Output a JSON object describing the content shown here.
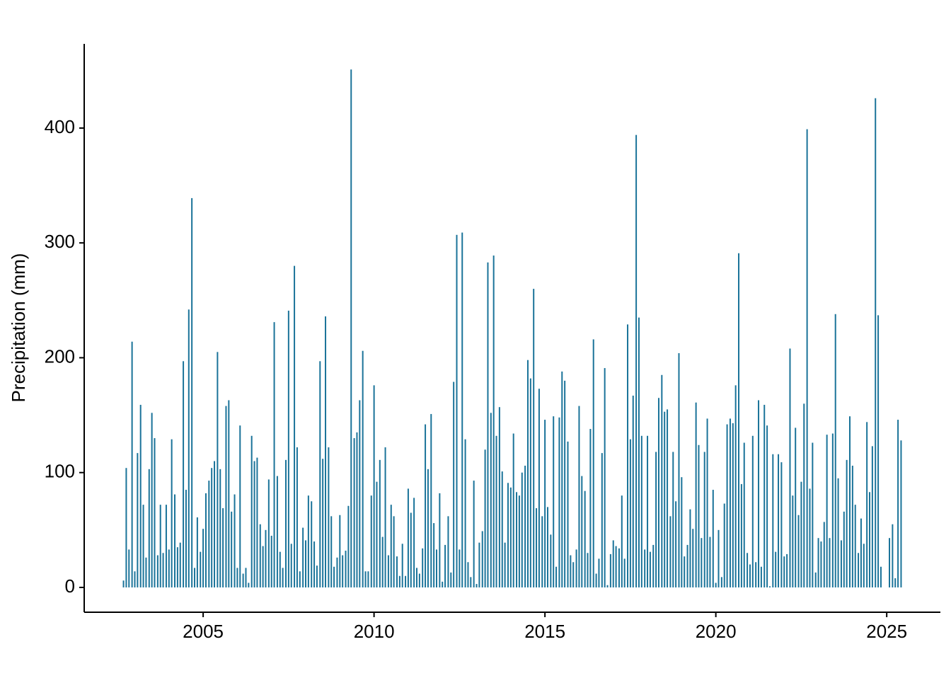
{
  "chart_data": {
    "type": "bar",
    "y_label": "Precipitation (mm)",
    "color": "#1a7399",
    "x": [
      2002.67,
      2002.75,
      2002.83,
      2002.92,
      2003,
      2003.08,
      2003.17,
      2003.25,
      2003.33,
      2003.42,
      2003.5,
      2003.58,
      2003.67,
      2003.75,
      2003.83,
      2003.92,
      2004,
      2004.08,
      2004.17,
      2004.25,
      2004.33,
      2004.42,
      2004.5,
      2004.58,
      2004.67,
      2004.75,
      2004.83,
      2004.92,
      2005,
      2005.08,
      2005.17,
      2005.25,
      2005.33,
      2005.42,
      2005.5,
      2005.58,
      2005.67,
      2005.75,
      2005.83,
      2005.92,
      2006,
      2006.08,
      2006.17,
      2006.25,
      2006.33,
      2006.42,
      2006.5,
      2006.58,
      2006.67,
      2006.75,
      2006.83,
      2006.92,
      2007,
      2007.08,
      2007.17,
      2007.25,
      2007.33,
      2007.42,
      2007.5,
      2007.58,
      2007.67,
      2007.75,
      2007.83,
      2007.92,
      2008,
      2008.08,
      2008.17,
      2008.25,
      2008.33,
      2008.42,
      2008.5,
      2008.58,
      2008.67,
      2008.75,
      2008.83,
      2008.92,
      2009,
      2009.08,
      2009.17,
      2009.25,
      2009.33,
      2009.42,
      2009.5,
      2009.58,
      2009.67,
      2009.75,
      2009.83,
      2009.92,
      2010,
      2010.08,
      2010.17,
      2010.25,
      2010.33,
      2010.42,
      2010.5,
      2010.58,
      2010.67,
      2010.75,
      2010.83,
      2010.92,
      2011,
      2011.08,
      2011.17,
      2011.25,
      2011.33,
      2011.42,
      2011.5,
      2011.58,
      2011.67,
      2011.75,
      2011.83,
      2011.92,
      2012,
      2012.08,
      2012.17,
      2012.25,
      2012.33,
      2012.42,
      2012.5,
      2012.58,
      2012.67,
      2012.75,
      2012.83,
      2012.92,
      2013,
      2013.08,
      2013.17,
      2013.25,
      2013.33,
      2013.42,
      2013.5,
      2013.58,
      2013.67,
      2013.75,
      2013.83,
      2013.92,
      2014,
      2014.08,
      2014.17,
      2014.25,
      2014.33,
      2014.42,
      2014.5,
      2014.58,
      2014.67,
      2014.75,
      2014.83,
      2014.92,
      2015,
      2015.08,
      2015.17,
      2015.25,
      2015.33,
      2015.42,
      2015.5,
      2015.58,
      2015.67,
      2015.75,
      2015.83,
      2015.92,
      2016,
      2016.08,
      2016.17,
      2016.25,
      2016.33,
      2016.42,
      2016.5,
      2016.58,
      2016.67,
      2016.75,
      2016.83,
      2016.92,
      2017,
      2017.08,
      2017.17,
      2017.25,
      2017.33,
      2017.42,
      2017.5,
      2017.58,
      2017.67,
      2017.75,
      2017.83,
      2017.92,
      2018,
      2018.08,
      2018.17,
      2018.25,
      2018.33,
      2018.42,
      2018.5,
      2018.58,
      2018.67,
      2018.75,
      2018.83,
      2018.92,
      2019,
      2019.08,
      2019.17,
      2019.25,
      2019.33,
      2019.42,
      2019.5,
      2019.58,
      2019.67,
      2019.75,
      2019.83,
      2019.92,
      2020,
      2020.08,
      2020.17,
      2020.25,
      2020.33,
      2020.42,
      2020.5,
      2020.58,
      2020.67,
      2020.75,
      2020.83,
      2020.92,
      2021,
      2021.08,
      2021.17,
      2021.25,
      2021.33,
      2021.42,
      2021.5,
      2021.58,
      2021.67,
      2021.75,
      2021.83,
      2021.92,
      2022,
      2022.08,
      2022.17,
      2022.25,
      2022.33,
      2022.42,
      2022.5,
      2022.58,
      2022.67,
      2022.75,
      2022.83,
      2022.92,
      2023,
      2023.08,
      2023.17,
      2023.25,
      2023.33,
      2023.42,
      2023.5,
      2023.58,
      2023.67,
      2023.75,
      2023.83,
      2023.92,
      2024,
      2024.08,
      2024.17,
      2024.25,
      2024.33,
      2024.42,
      2024.5,
      2024.58,
      2024.67,
      2024.75,
      2024.83,
      2025.08,
      2025.17,
      2025.25,
      2025.33,
      2025.42
    ],
    "values": [
      6,
      104,
      33,
      214,
      14,
      117,
      159,
      72,
      26,
      103,
      152,
      130,
      28,
      72,
      30,
      72,
      33,
      129,
      81,
      35,
      39,
      197,
      85,
      242,
      339,
      17,
      61,
      31,
      51,
      82,
      93,
      104,
      110,
      205,
      103,
      69,
      158,
      163,
      66,
      81,
      17,
      141,
      12,
      17,
      4,
      132,
      110,
      113,
      55,
      36,
      50,
      94,
      45,
      231,
      97,
      31,
      17,
      111,
      241,
      38,
      280,
      122,
      14,
      52,
      41,
      80,
      75,
      40,
      19,
      197,
      112,
      236,
      122,
      62,
      18,
      26,
      63,
      28,
      32,
      71,
      451,
      130,
      135,
      163,
      206,
      14,
      14,
      80,
      176,
      92,
      111,
      44,
      122,
      28,
      72,
      62,
      27,
      10,
      38,
      10,
      86,
      65,
      78,
      17,
      12,
      34,
      142,
      103,
      151,
      56,
      33,
      82,
      5,
      37,
      62,
      13,
      179,
      307,
      33,
      309,
      129,
      22,
      9,
      93,
      3,
      39,
      49,
      120,
      283,
      152,
      289,
      132,
      157,
      101,
      39,
      91,
      87,
      134,
      83,
      80,
      100,
      106,
      198,
      182,
      260,
      69,
      173,
      62,
      146,
      70,
      46,
      149,
      18,
      148,
      188,
      180,
      127,
      28,
      22,
      33,
      158,
      97,
      84,
      30,
      138,
      216,
      12,
      25,
      117,
      191,
      2,
      29,
      41,
      36,
      34,
      80,
      25,
      229,
      129,
      167,
      394,
      235,
      132,
      33,
      132,
      31,
      37,
      118,
      165,
      185,
      153,
      155,
      62,
      118,
      75,
      204,
      96,
      27,
      37,
      68,
      51,
      161,
      124,
      43,
      118,
      147,
      44,
      85,
      4,
      50,
      9,
      73,
      142,
      147,
      143,
      176,
      291,
      90,
      126,
      30,
      20,
      132,
      22,
      163,
      18,
      159,
      141,
      1,
      116,
      31,
      116,
      109,
      27,
      29,
      208,
      80,
      139,
      63,
      92,
      160,
      399,
      86,
      126,
      13,
      43,
      40,
      57,
      133,
      43,
      134,
      238,
      95,
      41,
      66,
      111,
      149,
      106,
      72,
      30,
      60,
      38,
      144,
      83,
      123,
      426,
      237,
      18,
      43,
      55,
      8,
      146,
      128
    ],
    "xlim": [
      2001.52,
      2026.57
    ],
    "xticks": [
      2005,
      2010,
      2015,
      2020,
      2025
    ],
    "ylim": [
      -21.6,
      473.3
    ],
    "yticks": [
      0,
      100,
      200,
      300,
      400
    ],
    "grid": false
  }
}
